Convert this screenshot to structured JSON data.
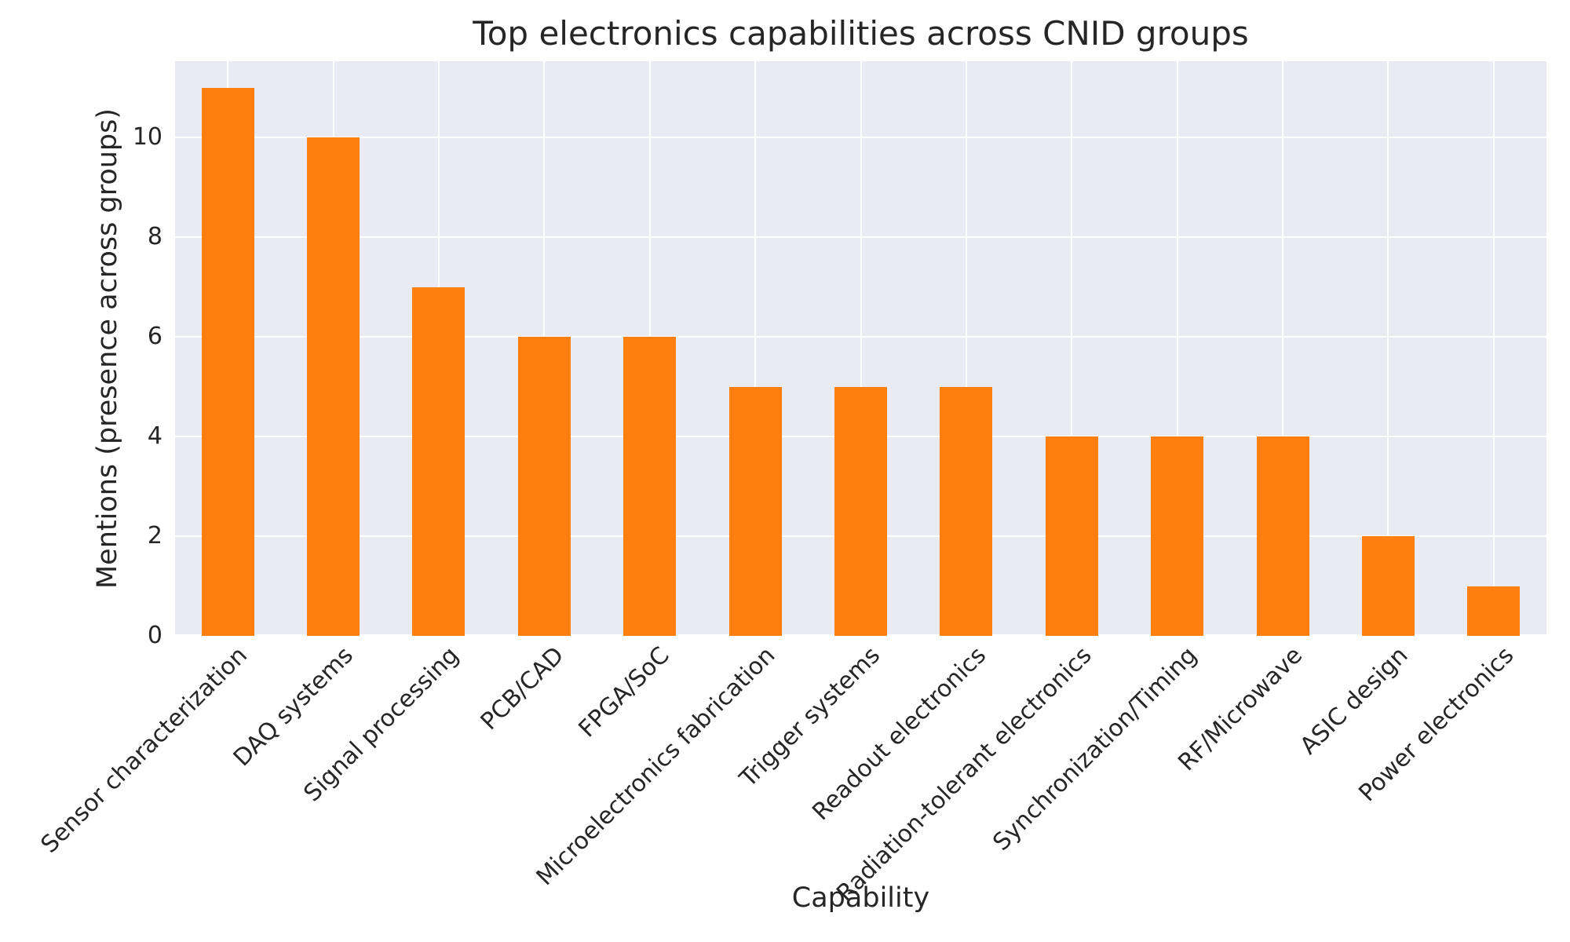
{
  "chart_data": {
    "type": "bar",
    "title": "Top electronics capabilities across CNID groups",
    "xlabel": "Capability",
    "ylabel": "Mentions (presence across groups)",
    "categories": [
      "Sensor characterization",
      "DAQ systems",
      "Signal processing",
      "PCB/CAD",
      "FPGA/SoC",
      "Microelectronics fabrication",
      "Trigger systems",
      "Readout electronics",
      "Radiation-tolerant electronics",
      "Synchronization/Timing",
      "RF/Microwave",
      "ASIC design",
      "Power electronics"
    ],
    "values": [
      11,
      10,
      7,
      6,
      6,
      5,
      5,
      5,
      4,
      4,
      4,
      2,
      1
    ],
    "yticks": [
      0,
      2,
      4,
      6,
      8,
      10
    ],
    "ylim": [
      0,
      11.53
    ],
    "grid": true,
    "legend": "none",
    "x_tick_rotation_deg": 45,
    "colors": {
      "bar": "#ff7f0e",
      "plot_background": "#eaeaf2",
      "gridline": "#ffffff",
      "text": "#262626",
      "figure_background": "#ffffff"
    }
  }
}
